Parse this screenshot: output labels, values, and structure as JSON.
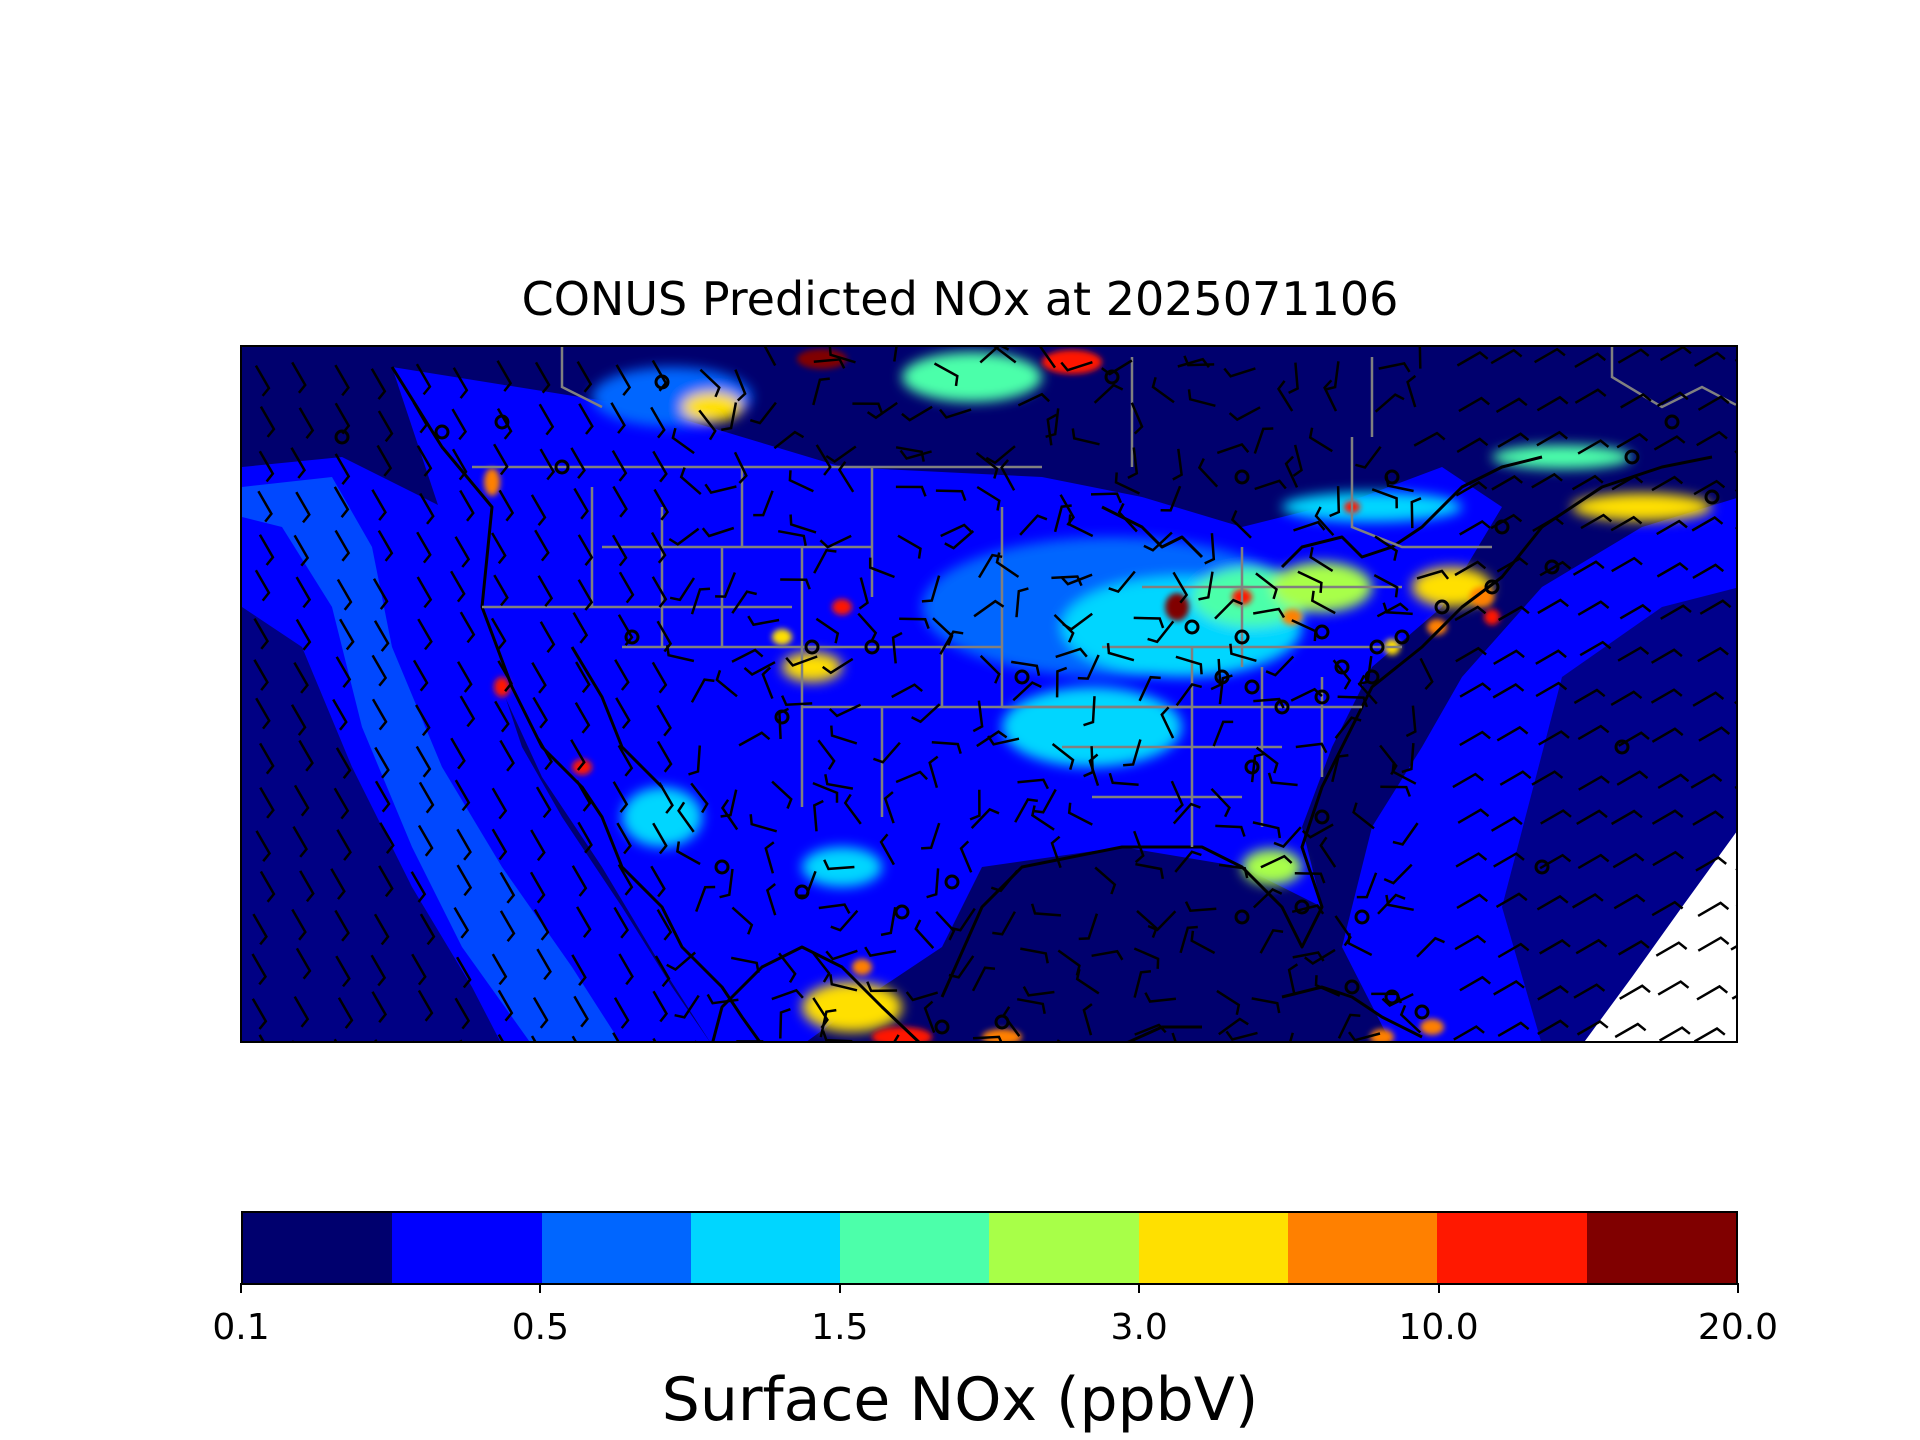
{
  "title": "CONUS Predicted NOx at 2025071106",
  "colorbar": {
    "label": "Surface NOx (ppbV)",
    "colors": [
      "#00006e",
      "#0000ff",
      "#0066ff",
      "#00d6ff",
      "#4cffaa",
      "#a8ff48",
      "#ffe000",
      "#ff8000",
      "#ff1800",
      "#800000"
    ],
    "ticks": [
      "0.1",
      "0.5",
      "1.5",
      "3.0",
      "10.0",
      "20.0"
    ]
  },
  "map": {
    "colors": {
      "ocean_deep": "#00006e",
      "ocean": "#0000ff",
      "ocean_light": "#0066ff",
      "background": "#00006e",
      "coastline": "#000000",
      "state_borders": "#808080",
      "wind_barbs": "#000000",
      "no_data": "#ffffff"
    },
    "layers": [
      "surface-nox-field",
      "coastlines",
      "state-borders",
      "wind-barbs",
      "station-markers"
    ]
  }
}
